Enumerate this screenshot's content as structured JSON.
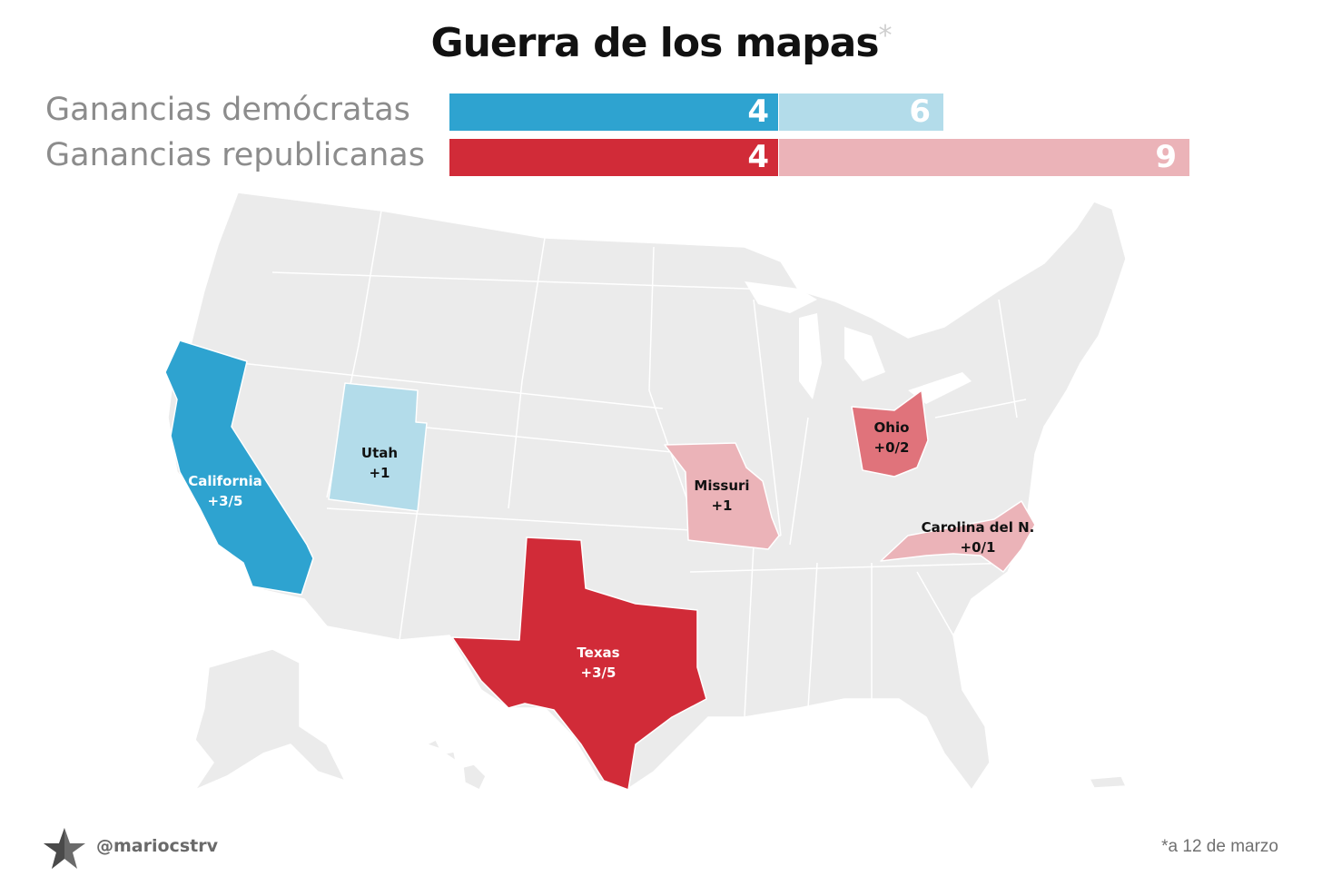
{
  "title": "Guerra de los mapas",
  "title_mark": "*",
  "bars": {
    "dem": {
      "label": "Ganancias demócratas",
      "won": "4",
      "possible": "6",
      "color_won": "#2ea3d0",
      "color_possible": "#b3dcea"
    },
    "rep": {
      "label": "Ganancias republicanas",
      "won": "4",
      "possible": "9",
      "color_won": "#d12b38",
      "color_possible": "#ebb3b8"
    }
  },
  "map": {
    "base_color": "#ebebeb",
    "states": {
      "california": {
        "name": "California",
        "value": "+3/5",
        "color": "#2ea3d0"
      },
      "utah": {
        "name": "Utah",
        "value": "+1",
        "color": "#b3dcea"
      },
      "missouri": {
        "name": "Missuri",
        "value": "+1",
        "color": "#ebb3b8"
      },
      "ohio": {
        "name": "Ohio",
        "value": "+0/2",
        "color": "#e0737b"
      },
      "north_carolina": {
        "name": "Carolina del N.",
        "value": "+0/1",
        "color": "#ebb3b8"
      },
      "texas": {
        "name": "Texas",
        "value": "+3/5",
        "color": "#d12b38"
      }
    }
  },
  "footer": {
    "handle": "@mariocstrv",
    "note": "*a 12 de marzo",
    "logo_icon": "star-icon"
  }
}
